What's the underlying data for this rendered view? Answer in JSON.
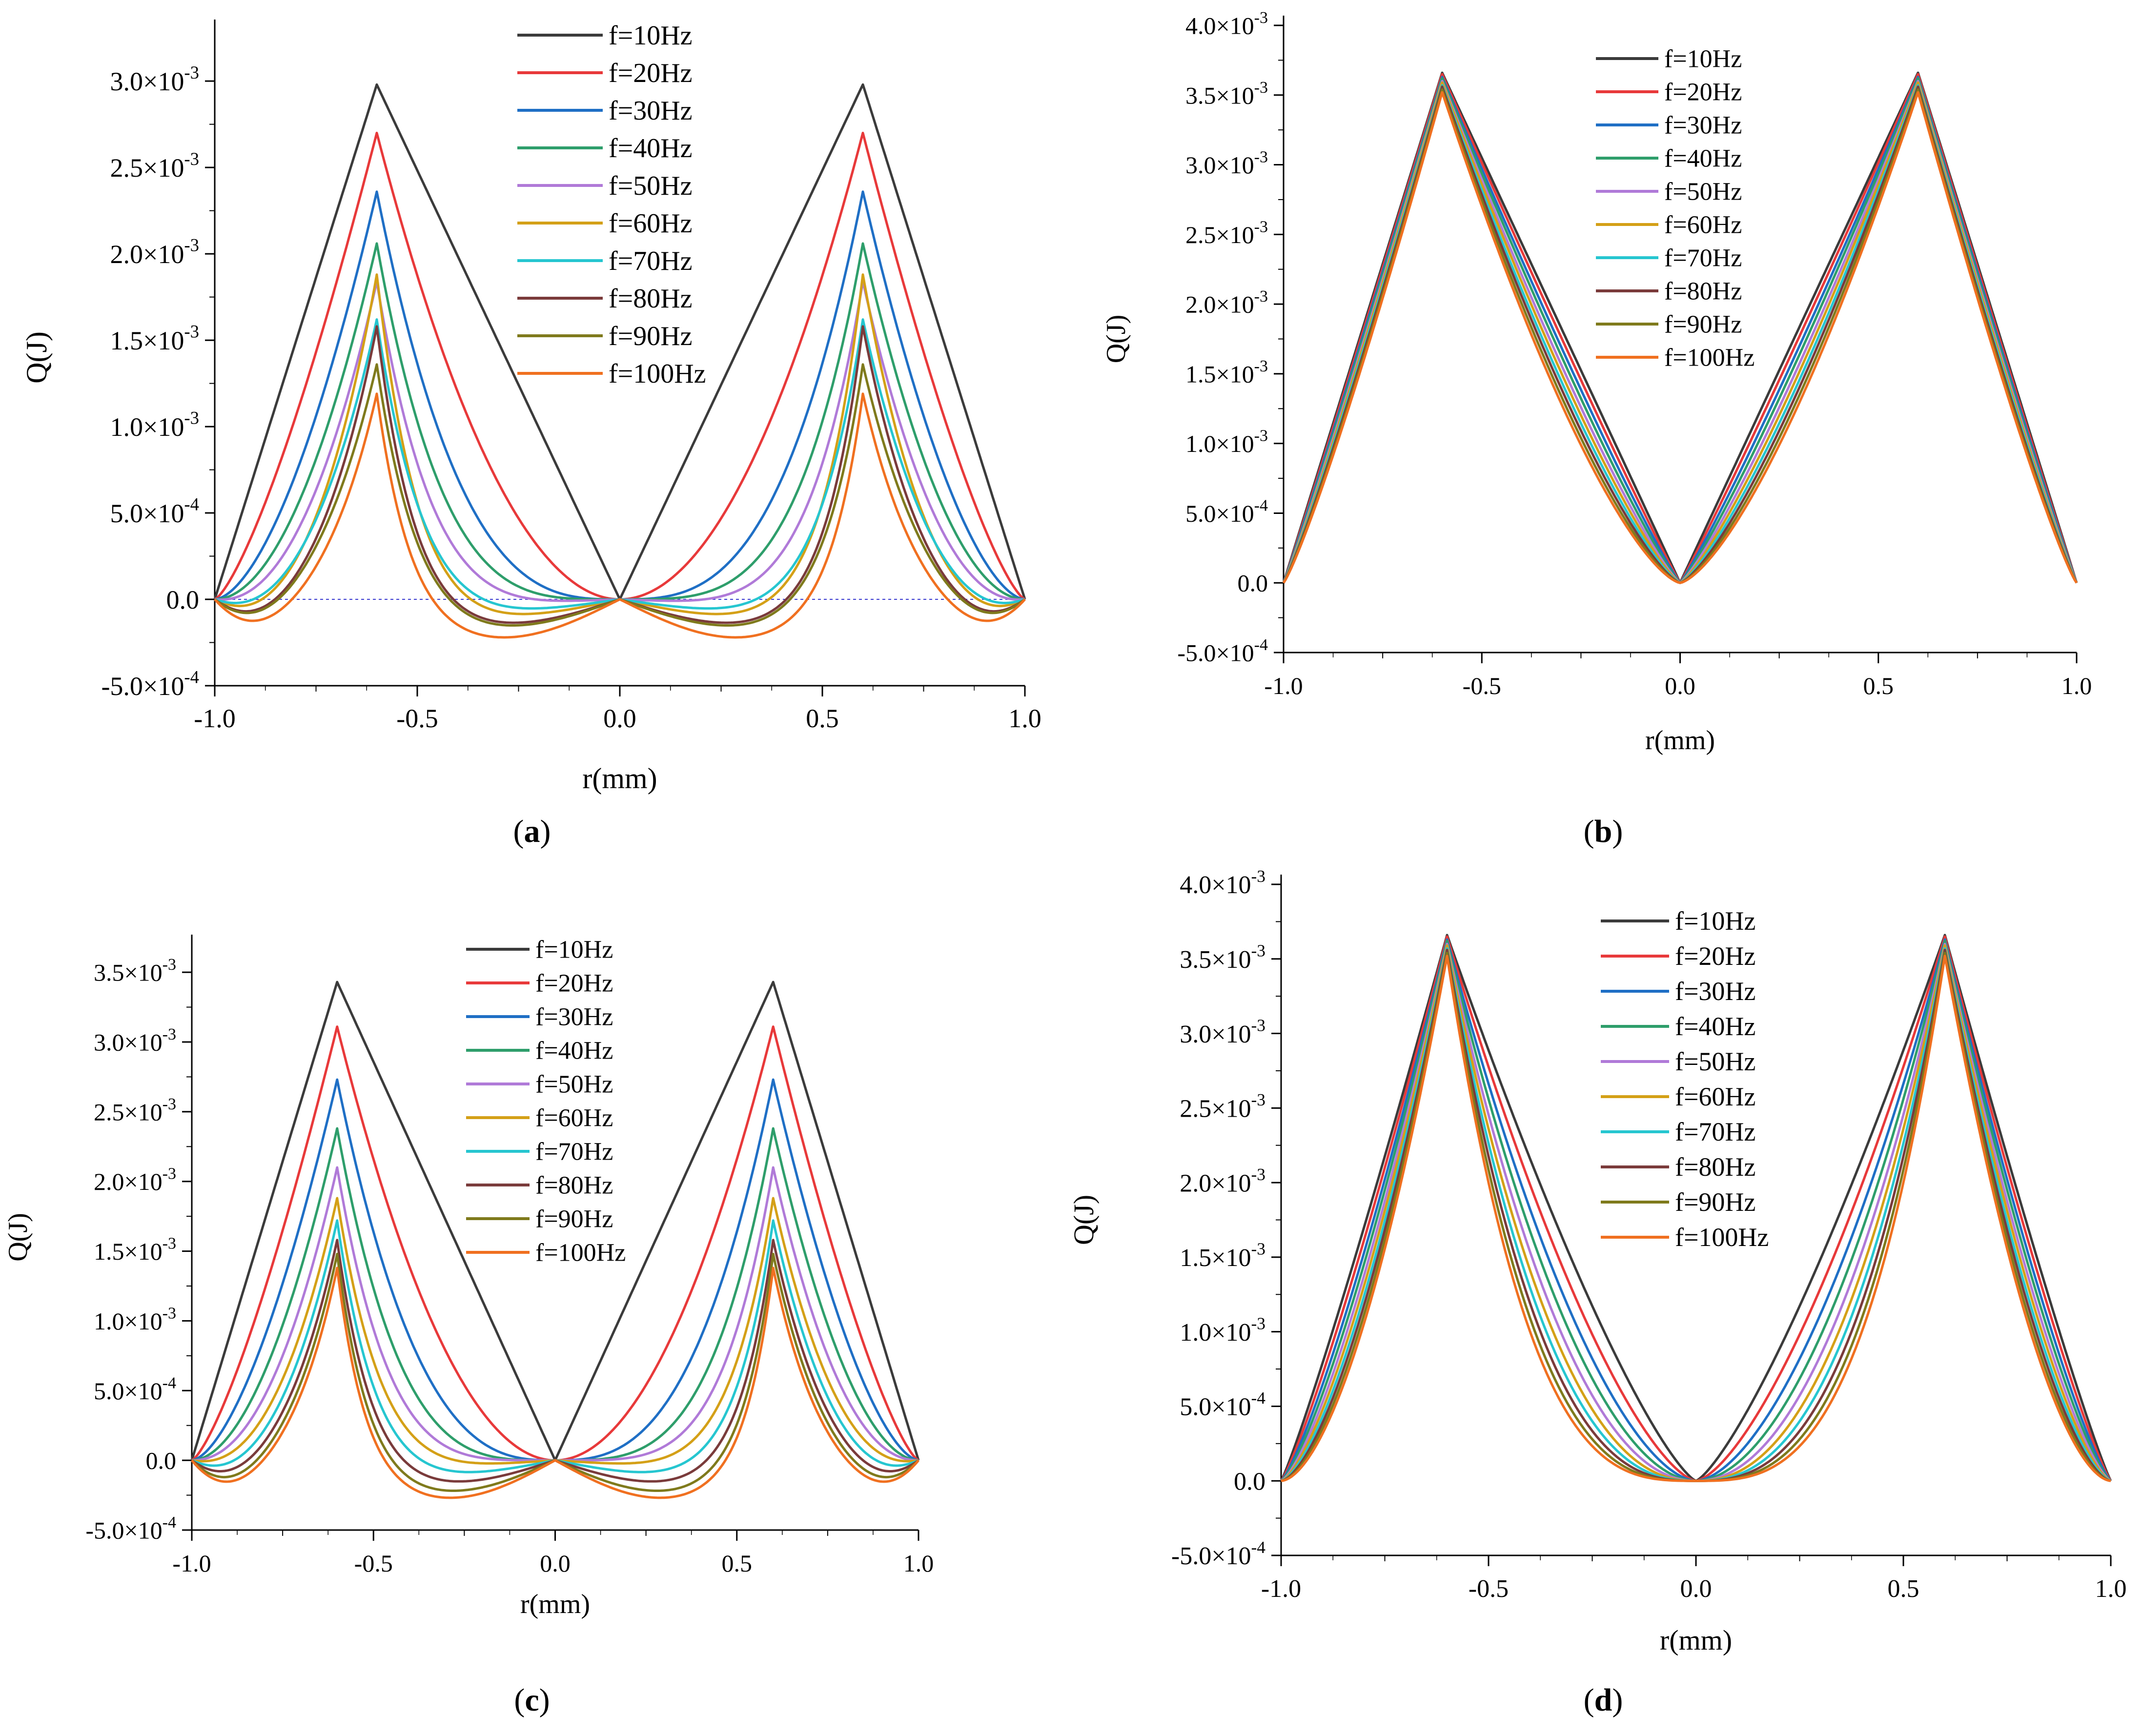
{
  "figure": {
    "x_ticks": [
      "-1.0",
      "-0.5",
      "0.0",
      "0.5",
      "1.0"
    ],
    "superscript_minus3": "-3",
    "superscript_minus4": "-4",
    "times": "×"
  },
  "chart_data": [
    {
      "panel": "a",
      "type": "line",
      "caption_prefix": "(",
      "caption_letter": "a",
      "caption_suffix": ")",
      "xlabel": "r(mm)",
      "ylabel": "Q(J)",
      "xlim": [
        -1.0,
        1.0
      ],
      "ylim": [
        -0.0005,
        0.0033
      ],
      "y_ticks": [
        {
          "value": -0.0005,
          "mant": "-5.0",
          "exp": "-4"
        },
        {
          "value": 0.0,
          "mant": "0.0",
          "exp": ""
        },
        {
          "value": 0.0005,
          "mant": "5.0",
          "exp": "-4"
        },
        {
          "value": 0.001,
          "mant": "1.0",
          "exp": "-3"
        },
        {
          "value": 0.0015,
          "mant": "1.5",
          "exp": "-3"
        },
        {
          "value": 0.002,
          "mant": "2.0",
          "exp": "-3"
        },
        {
          "value": 0.0025,
          "mant": "2.5",
          "exp": "-3"
        },
        {
          "value": 0.003,
          "mant": "3.0",
          "exp": "-3"
        }
      ],
      "zero_reference_line": true,
      "legend_position": "top-center",
      "series": [
        {
          "name": "f=10Hz",
          "color": "#3b3b3b",
          "peak": 0.00298,
          "shape": 0.0,
          "dip": 0.0
        },
        {
          "name": "f=20Hz",
          "color": "#e8393a",
          "peak": 0.0027,
          "shape": 1.0,
          "dip": 0.0
        },
        {
          "name": "f=30Hz",
          "color": "#1f6fc5",
          "peak": 0.00236,
          "shape": 2.0,
          "dip": 0.0
        },
        {
          "name": "f=40Hz",
          "color": "#2e9e6b",
          "peak": 0.00206,
          "shape": 2.8,
          "dip": 0.0
        },
        {
          "name": "f=50Hz",
          "color": "#b07ad8",
          "peak": 0.00184,
          "shape": 3.6,
          "dip": -1e-05
        },
        {
          "name": "f=60Hz",
          "color": "#d4a017",
          "peak": 0.00188,
          "shape": 5.2,
          "dip": -6e-05
        },
        {
          "name": "f=70Hz",
          "color": "#26c6d0",
          "peak": 0.00162,
          "shape": 4.6,
          "dip": -4e-05
        },
        {
          "name": "f=80Hz",
          "color": "#7a3b3b",
          "peak": 0.00158,
          "shape": 5.8,
          "dip": -9e-05
        },
        {
          "name": "f=90Hz",
          "color": "#7f7a1c",
          "peak": 0.00136,
          "shape": 5.6,
          "dip": -0.0001
        },
        {
          "name": "f=100Hz",
          "color": "#f07020",
          "peak": 0.00119,
          "shape": 7.0,
          "dip": -0.00014
        }
      ]
    },
    {
      "panel": "b",
      "type": "line",
      "caption_prefix": "(",
      "caption_letter": "b",
      "caption_suffix": ")",
      "xlabel": "r(mm)",
      "ylabel": "Q(J)",
      "xlim": [
        -1.0,
        1.0
      ],
      "ylim": [
        -0.0005,
        0.004
      ],
      "y_ticks": [
        {
          "value": -0.0005,
          "mant": "-5.0",
          "exp": "-4"
        },
        {
          "value": 0.0,
          "mant": "0.0",
          "exp": ""
        },
        {
          "value": 0.0005,
          "mant": "5.0",
          "exp": "-4"
        },
        {
          "value": 0.001,
          "mant": "1.0",
          "exp": "-3"
        },
        {
          "value": 0.0015,
          "mant": "1.5",
          "exp": "-3"
        },
        {
          "value": 0.002,
          "mant": "2.0",
          "exp": "-3"
        },
        {
          "value": 0.0025,
          "mant": "2.5",
          "exp": "-3"
        },
        {
          "value": 0.003,
          "mant": "3.0",
          "exp": "-3"
        },
        {
          "value": 0.0035,
          "mant": "3.5",
          "exp": "-3"
        },
        {
          "value": 0.004,
          "mant": "4.0",
          "exp": "-3"
        }
      ],
      "zero_reference_line": false,
      "legend_position": "top-center",
      "series": [
        {
          "name": "f=10Hz",
          "color": "#3b3b3b",
          "peak": 0.00366,
          "shape": 0.0,
          "dip": 0.0
        },
        {
          "name": "f=20Hz",
          "color": "#e8393a",
          "peak": 0.00365,
          "shape": 0.05,
          "dip": 0.0
        },
        {
          "name": "f=30Hz",
          "color": "#1f6fc5",
          "peak": 0.00363,
          "shape": 0.1,
          "dip": 0.0
        },
        {
          "name": "f=40Hz",
          "color": "#2e9e6b",
          "peak": 0.00362,
          "shape": 0.15,
          "dip": 0.0
        },
        {
          "name": "f=50Hz",
          "color": "#b07ad8",
          "peak": 0.0036,
          "shape": 0.2,
          "dip": 0.0
        },
        {
          "name": "f=60Hz",
          "color": "#d4a017",
          "peak": 0.00359,
          "shape": 0.25,
          "dip": 0.0
        },
        {
          "name": "f=70Hz",
          "color": "#26c6d0",
          "peak": 0.00357,
          "shape": 0.3,
          "dip": 0.0
        },
        {
          "name": "f=80Hz",
          "color": "#7a3b3b",
          "peak": 0.00356,
          "shape": 0.35,
          "dip": 0.0
        },
        {
          "name": "f=90Hz",
          "color": "#7f7a1c",
          "peak": 0.00354,
          "shape": 0.4,
          "dip": 0.0
        },
        {
          "name": "f=100Hz",
          "color": "#f07020",
          "peak": 0.00352,
          "shape": 0.45,
          "dip": 0.0
        }
      ]
    },
    {
      "panel": "c",
      "type": "line",
      "caption_prefix": "(",
      "caption_letter": "c",
      "caption_suffix": ")",
      "xlabel": "r(mm)",
      "ylabel": "Q(J)",
      "xlim": [
        -1.0,
        1.0
      ],
      "ylim": [
        -0.0005,
        0.0037
      ],
      "y_ticks": [
        {
          "value": -0.0005,
          "mant": "-5.0",
          "exp": "-4"
        },
        {
          "value": 0.0,
          "mant": "0.0",
          "exp": ""
        },
        {
          "value": 0.0005,
          "mant": "5.0",
          "exp": "-4"
        },
        {
          "value": 0.001,
          "mant": "1.0",
          "exp": "-3"
        },
        {
          "value": 0.0015,
          "mant": "1.5",
          "exp": "-3"
        },
        {
          "value": 0.002,
          "mant": "2.0",
          "exp": "-3"
        },
        {
          "value": 0.0025,
          "mant": "2.5",
          "exp": "-3"
        },
        {
          "value": 0.003,
          "mant": "3.0",
          "exp": "-3"
        },
        {
          "value": 0.0035,
          "mant": "3.5",
          "exp": "-3"
        }
      ],
      "zero_reference_line": false,
      "legend_position": "top-center",
      "series": [
        {
          "name": "f=10Hz",
          "color": "#3b3b3b",
          "peak": 0.00343,
          "shape": 0.0,
          "dip": 0.0
        },
        {
          "name": "f=20Hz",
          "color": "#e8393a",
          "peak": 0.00311,
          "shape": 1.0,
          "dip": 0.0
        },
        {
          "name": "f=30Hz",
          "color": "#1f6fc5",
          "peak": 0.00273,
          "shape": 1.8,
          "dip": 0.0
        },
        {
          "name": "f=40Hz",
          "color": "#2e9e6b",
          "peak": 0.00238,
          "shape": 2.6,
          "dip": 0.0
        },
        {
          "name": "f=50Hz",
          "color": "#b07ad8",
          "peak": 0.0021,
          "shape": 3.4,
          "dip": 0.0
        },
        {
          "name": "f=60Hz",
          "color": "#d4a017",
          "peak": 0.00188,
          "shape": 4.2,
          "dip": -2e-05
        },
        {
          "name": "f=70Hz",
          "color": "#26c6d0",
          "peak": 0.00172,
          "shape": 5.0,
          "dip": -6e-05
        },
        {
          "name": "f=80Hz",
          "color": "#7a3b3b",
          "peak": 0.00158,
          "shape": 5.8,
          "dip": -0.0001
        },
        {
          "name": "f=90Hz",
          "color": "#7f7a1c",
          "peak": 0.00148,
          "shape": 6.6,
          "dip": -0.00014
        },
        {
          "name": "f=100Hz",
          "color": "#f07020",
          "peak": 0.00138,
          "shape": 7.4,
          "dip": -0.00017
        }
      ]
    },
    {
      "panel": "d",
      "type": "line",
      "caption_prefix": "(",
      "caption_letter": "d",
      "caption_suffix": ")",
      "xlabel": "r(mm)",
      "ylabel": "Q(J)",
      "xlim": [
        -1.0,
        1.0
      ],
      "ylim": [
        -0.0005,
        0.004
      ],
      "y_ticks": [
        {
          "value": -0.0005,
          "mant": "-5.0",
          "exp": "-4"
        },
        {
          "value": 0.0,
          "mant": "0.0",
          "exp": ""
        },
        {
          "value": 0.0005,
          "mant": "5.0",
          "exp": "-4"
        },
        {
          "value": 0.001,
          "mant": "1.0",
          "exp": "-3"
        },
        {
          "value": 0.0015,
          "mant": "1.5",
          "exp": "-3"
        },
        {
          "value": 0.002,
          "mant": "2.0",
          "exp": "-3"
        },
        {
          "value": 0.0025,
          "mant": "2.5",
          "exp": "-3"
        },
        {
          "value": 0.003,
          "mant": "3.0",
          "exp": "-3"
        },
        {
          "value": 0.0035,
          "mant": "3.5",
          "exp": "-3"
        },
        {
          "value": 0.004,
          "mant": "4.0",
          "exp": "-3"
        }
      ],
      "zero_reference_line": false,
      "legend_position": "top-center",
      "series": [
        {
          "name": "f=10Hz",
          "color": "#3b3b3b",
          "peak": 0.00366,
          "shape": 0.3,
          "dip": 0.0
        },
        {
          "name": "f=20Hz",
          "color": "#e8393a",
          "peak": 0.00365,
          "shape": 0.5,
          "dip": 0.0
        },
        {
          "name": "f=30Hz",
          "color": "#1f6fc5",
          "peak": 0.00363,
          "shape": 0.7,
          "dip": 0.0
        },
        {
          "name": "f=40Hz",
          "color": "#2e9e6b",
          "peak": 0.00362,
          "shape": 0.9,
          "dip": 0.0
        },
        {
          "name": "f=50Hz",
          "color": "#b07ad8",
          "peak": 0.0036,
          "shape": 1.1,
          "dip": 0.0
        },
        {
          "name": "f=60Hz",
          "color": "#d4a017",
          "peak": 0.00359,
          "shape": 1.3,
          "dip": 0.0
        },
        {
          "name": "f=70Hz",
          "color": "#26c6d0",
          "peak": 0.00357,
          "shape": 1.5,
          "dip": 0.0
        },
        {
          "name": "f=80Hz",
          "color": "#7a3b3b",
          "peak": 0.00356,
          "shape": 1.7,
          "dip": 0.0
        },
        {
          "name": "f=90Hz",
          "color": "#7f7a1c",
          "peak": 0.00354,
          "shape": 1.9,
          "dip": 0.0
        },
        {
          "name": "f=100Hz",
          "color": "#f07020",
          "peak": 0.00352,
          "shape": 2.1,
          "dip": 0.0
        }
      ]
    }
  ]
}
